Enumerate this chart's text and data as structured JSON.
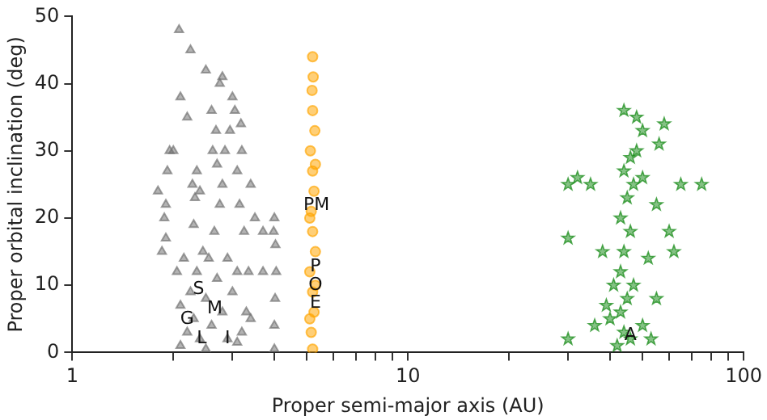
{
  "chart_data": {
    "type": "scatter",
    "xlabel": "Proper semi-major axis (AU)",
    "ylabel": "Proper orbital inclination (deg)",
    "log": "x",
    "grid": false,
    "xlim": [
      1,
      100
    ],
    "ylim": [
      0,
      50
    ],
    "xticks": [
      1,
      {
        "value": 2,
        "label": null
      },
      {
        "value": 3,
        "label": null
      },
      {
        "value": 4,
        "label": null
      },
      {
        "value": 5,
        "label": null
      },
      {
        "value": 6,
        "label": null
      },
      {
        "value": 7,
        "label": null
      },
      {
        "value": 8,
        "label": null
      },
      {
        "value": 9,
        "label": null
      },
      10,
      {
        "value": 20,
        "label": null
      },
      {
        "value": 30,
        "label": null
      },
      {
        "value": 40,
        "label": null
      },
      {
        "value": 50,
        "label": null
      },
      {
        "value": 60,
        "label": null
      },
      {
        "value": 70,
        "label": null
      },
      {
        "value": 80,
        "label": null
      },
      {
        "value": 90,
        "label": null
      },
      100
    ],
    "yticks": [
      0,
      10,
      20,
      30,
      40,
      50
    ],
    "series": [
      {
        "color": "#707070",
        "marker": "triangle",
        "x": [
          2.1,
          2.2,
          2.3,
          2.4,
          2.5,
          2.6,
          2.7,
          2.8,
          2.9,
          3.0,
          3.1,
          3.2,
          3.3,
          2.25,
          2.35,
          2.45,
          2.55,
          2.65,
          2.75,
          2.7,
          2.68,
          2.62,
          2.8,
          3.15,
          3.2,
          3.18,
          3.1,
          3.25,
          3.35,
          3.4,
          2.15,
          2.1,
          2.05,
          1.9,
          1.9,
          1.92,
          1.95,
          1.88,
          2.3,
          2.32,
          2.35,
          2.28,
          2.4,
          2.85,
          2.95,
          3.0,
          2.75,
          2.6,
          2.2,
          2.1,
          2.0,
          2.08,
          2.25,
          2.5,
          2.8,
          3.05,
          3.4,
          3.5,
          3.7,
          3.7,
          4.0,
          4.0,
          4.02,
          4.05,
          4.03,
          3.98,
          4.0,
          1.8,
          1.85,
          2.9,
          2.5,
          3.1
        ],
        "values": [
          1,
          3,
          5,
          2,
          8,
          4,
          11,
          6,
          14,
          9,
          12,
          3,
          6,
          9,
          12,
          15,
          14,
          18,
          22,
          28,
          33,
          30,
          25,
          22,
          30,
          34,
          27,
          18,
          12,
          5,
          14,
          7,
          12,
          17,
          22,
          27,
          30,
          20,
          19,
          23,
          27,
          25,
          24,
          30,
          33,
          38,
          40,
          36,
          35,
          38,
          30,
          48,
          45,
          42,
          41,
          36,
          25,
          20,
          18,
          12,
          0.5,
          4,
          8,
          12,
          16,
          18,
          20,
          24,
          15,
          2,
          0.5,
          1.5
        ]
      },
      {
        "color": "#ffa500",
        "marker": "circle",
        "x": [
          5.2,
          5.15,
          5.25,
          5.2,
          5.1,
          5.3,
          5.2,
          5.15,
          5.25,
          5.2,
          5.12,
          5.28,
          5.2,
          5.18,
          5.22,
          5.2,
          5.1,
          5.3,
          5.1,
          5.3
        ],
        "values": [
          0.5,
          3,
          6,
          9,
          12,
          15,
          18,
          21,
          24,
          27,
          30,
          33,
          36,
          39,
          41,
          44,
          5,
          10,
          20,
          28
        ]
      },
      {
        "color": "#1a8c1a",
        "marker": "star",
        "x": [
          42,
          44,
          46,
          43,
          45,
          47,
          43,
          44,
          46,
          43,
          45,
          47,
          44,
          46,
          48,
          50,
          55,
          60,
          52,
          55,
          50,
          40,
          38,
          35,
          32,
          30,
          30,
          30,
          65,
          75,
          56,
          58,
          48,
          44,
          50,
          62,
          53,
          41,
          39,
          36
        ],
        "values": [
          1,
          3,
          2,
          6,
          8,
          10,
          12,
          15,
          18,
          20,
          23,
          25,
          27,
          29,
          30,
          26,
          22,
          18,
          14,
          8,
          4,
          5,
          15,
          25,
          26,
          2,
          17,
          25,
          25,
          25,
          31,
          34,
          35,
          36,
          33,
          15,
          2,
          10,
          7,
          4
        ]
      }
    ],
    "annotations": [
      {
        "text": "S",
        "x": 2.38,
        "y": 9.4
      },
      {
        "text": "G",
        "x": 2.2,
        "y": 4.9
      },
      {
        "text": "M",
        "x": 2.66,
        "y": 6.5
      },
      {
        "text": "L",
        "x": 2.43,
        "y": 2
      },
      {
        "text": "I",
        "x": 2.9,
        "y": 2
      },
      {
        "text": "PM",
        "x": 5.34,
        "y": 21.9
      },
      {
        "text": "P",
        "x": 5.3,
        "y": 12.7
      },
      {
        "text": "O",
        "x": 5.3,
        "y": 10
      },
      {
        "text": "E",
        "x": 5.3,
        "y": 7.4
      },
      {
        "text": "A",
        "x": 46,
        "y": 2.5
      }
    ]
  }
}
